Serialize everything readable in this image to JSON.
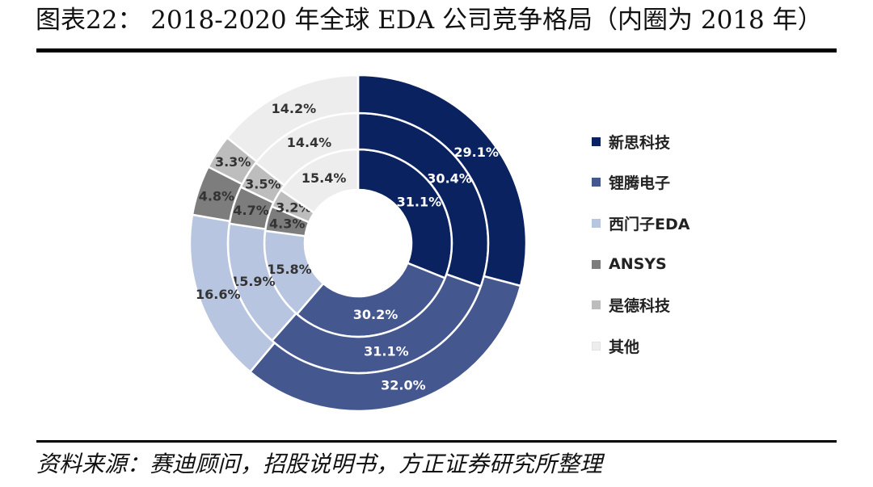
{
  "page": {
    "title": "图表22：  2018-2020 年全球 EDA 公司竞争格局（内圈为 2018 年）",
    "source": "资料来源：赛迪顾问，招股说明书，方正证券研究所整理"
  },
  "chart_data": {
    "type": "donut",
    "categories": [
      "新思科技",
      "锂腾电子",
      "西门子EDA",
      "ANSYS",
      "是德科技",
      "其他"
    ],
    "colors": [
      "#0b2260",
      "#44578f",
      "#b8c5e0",
      "#7d7d7d",
      "#bdbdbd",
      "#ededed"
    ],
    "label_colors": [
      "#ffffff",
      "#ffffff",
      "#333333",
      "#333333",
      "#333333",
      "#333333"
    ],
    "series": [
      {
        "name": "2018",
        "ring": "inner",
        "values": [
          31.1,
          30.2,
          15.8,
          4.3,
          3.2,
          15.4
        ],
        "labels": [
          "31.1%",
          "30.2%",
          "15.8%",
          "4.3%",
          "3.2%",
          "15.4%"
        ]
      },
      {
        "name": "2019",
        "ring": "middle",
        "values": [
          30.4,
          31.1,
          15.9,
          4.7,
          3.5,
          14.4
        ],
        "labels": [
          "30.4%",
          "31.1%",
          "15.9%",
          "4.7%",
          "3.5%",
          "14.4%"
        ]
      },
      {
        "name": "2020",
        "ring": "outer",
        "values": [
          29.1,
          32.0,
          16.6,
          4.8,
          3.3,
          14.2
        ],
        "labels": [
          "29.1%",
          "32.0%",
          "16.6%",
          "4.8%",
          "3.3%",
          "14.2%"
        ]
      }
    ],
    "legend": "right"
  }
}
